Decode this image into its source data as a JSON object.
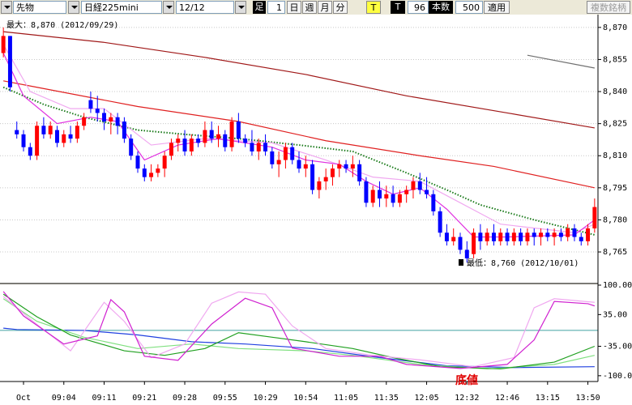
{
  "toolbar": {
    "market": "先物",
    "symbol": "日経225mini",
    "date": "12/12",
    "bar_label": "足",
    "bar_count": "1",
    "day": "日",
    "week": "週",
    "month": "月",
    "minute": "分",
    "tick_yellow": "T",
    "tick_label": "T",
    "tick_count": "96",
    "count_label": "本数",
    "count_value": "500",
    "apply": "適用",
    "multi": "複数銘柄"
  },
  "chart_data": [
    {
      "type": "candlestick",
      "max_label": "最大：8,870 (2012/09/29)",
      "min_label": "最低：8,760 (2012/10/01)",
      "categories": [
        null,
        null,
        null,
        "Oct",
        null,
        null,
        null,
        null,
        null,
        "09:04",
        null,
        null,
        null,
        null,
        null,
        "09:11",
        null,
        null,
        null,
        null,
        null,
        "09:21",
        null,
        null,
        null,
        null,
        null,
        "09:28",
        null,
        null,
        null,
        null,
        null,
        "09:55",
        null,
        null,
        null,
        null,
        null,
        "10:29",
        null,
        null,
        null,
        null,
        null,
        "10:54",
        null,
        null,
        null,
        null,
        null,
        "11:05",
        null,
        null,
        null,
        null,
        null,
        "11:35",
        null,
        null,
        null,
        null,
        null,
        "12:05",
        null,
        null,
        null,
        null,
        null,
        "12:32",
        null,
        null,
        null,
        null,
        null,
        "12:46",
        null,
        null,
        null,
        null,
        null,
        "13:15",
        null,
        null,
        null,
        null,
        null,
        "13:50",
        null
      ],
      "ohlc": [
        [
          8858,
          8870,
          8856,
          8866
        ],
        [
          8866,
          8866,
          8840,
          8842
        ],
        [
          8822,
          8826,
          8818,
          8820
        ],
        [
          8820,
          8822,
          8812,
          8814
        ],
        [
          8814,
          8816,
          8808,
          8810
        ],
        [
          8810,
          8826,
          8808,
          8824
        ],
        [
          8824,
          8828,
          8818,
          8820
        ],
        [
          8820,
          8826,
          8818,
          8824
        ],
        [
          8822,
          8824,
          8814,
          8816
        ],
        [
          8816,
          8822,
          8814,
          8820
        ],
        [
          8820,
          8824,
          8816,
          8818
        ],
        [
          8818,
          8826,
          8816,
          8824
        ],
        [
          8824,
          8830,
          8822,
          8828
        ],
        [
          8836,
          8840,
          8830,
          8832
        ],
        [
          8832,
          8838,
          8826,
          8830
        ],
        [
          8830,
          8832,
          8822,
          8826
        ],
        [
          8826,
          8830,
          8820,
          8828
        ],
        [
          8828,
          8830,
          8820,
          8824
        ],
        [
          8826,
          8828,
          8816,
          8818
        ],
        [
          8818,
          8820,
          8808,
          8810
        ],
        [
          8810,
          8812,
          8802,
          8804
        ],
        [
          8804,
          8806,
          8798,
          8800
        ],
        [
          8800,
          8806,
          8798,
          8802
        ],
        [
          8802,
          8806,
          8800,
          8804
        ],
        [
          8804,
          8812,
          8800,
          8810
        ],
        [
          8810,
          8818,
          8808,
          8816
        ],
        [
          8816,
          8820,
          8812,
          8818
        ],
        [
          8818,
          8822,
          8810,
          8812
        ],
        [
          8812,
          8820,
          8810,
          8818
        ],
        [
          8818,
          8820,
          8814,
          8816
        ],
        [
          8816,
          8826,
          8814,
          8822
        ],
        [
          8822,
          8826,
          8816,
          8818
        ],
        [
          8818,
          8824,
          8814,
          8820
        ],
        [
          8820,
          8822,
          8812,
          8814
        ],
        [
          8814,
          8828,
          8812,
          8826
        ],
        [
          8826,
          8830,
          8816,
          8818
        ],
        [
          8818,
          8820,
          8814,
          8816
        ],
        [
          8816,
          8822,
          8810,
          8812
        ],
        [
          8812,
          8818,
          8808,
          8816
        ],
        [
          8816,
          8820,
          8810,
          8812
        ],
        [
          8812,
          8814,
          8804,
          8806
        ],
        [
          8806,
          8812,
          8800,
          8808
        ],
        [
          8808,
          8816,
          8804,
          8814
        ],
        [
          8814,
          8816,
          8806,
          8808
        ],
        [
          8808,
          8812,
          8802,
          8804
        ],
        [
          8804,
          8810,
          8800,
          8806
        ],
        [
          8806,
          8808,
          8792,
          8794
        ],
        [
          8794,
          8800,
          8790,
          8798
        ],
        [
          8798,
          8804,
          8794,
          8800
        ],
        [
          8800,
          8806,
          8796,
          8804
        ],
        [
          8804,
          8808,
          8800,
          8806
        ],
        [
          8806,
          8808,
          8802,
          8804
        ],
        [
          8804,
          8810,
          8800,
          8806
        ],
        [
          8806,
          8808,
          8796,
          8798
        ],
        [
          8798,
          8800,
          8786,
          8788
        ],
        [
          8788,
          8796,
          8786,
          8794
        ],
        [
          8794,
          8798,
          8786,
          8790
        ],
        [
          8790,
          8796,
          8786,
          8792
        ],
        [
          8792,
          8796,
          8786,
          8788
        ],
        [
          8788,
          8794,
          8786,
          8792
        ],
        [
          8792,
          8796,
          8788,
          8794
        ],
        [
          8794,
          8800,
          8790,
          8798
        ],
        [
          8798,
          8802,
          8792,
          8794
        ],
        [
          8794,
          8800,
          8790,
          8792
        ],
        [
          8792,
          8794,
          8782,
          8784
        ],
        [
          8784,
          8786,
          8772,
          8774
        ],
        [
          8774,
          8778,
          8768,
          8770
        ],
        [
          8770,
          8776,
          8768,
          8772
        ],
        [
          8772,
          8774,
          8764,
          8766
        ],
        [
          8766,
          8770,
          8760,
          8762
        ],
        [
          8764,
          8776,
          8762,
          8774
        ],
        [
          8774,
          8778,
          8766,
          8770
        ],
        [
          8770,
          8776,
          8768,
          8774
        ],
        [
          8774,
          8778,
          8768,
          8770
        ],
        [
          8770,
          8776,
          8768,
          8774
        ],
        [
          8774,
          8776,
          8768,
          8770
        ],
        [
          8770,
          8776,
          8768,
          8774
        ],
        [
          8774,
          8776,
          8768,
          8770
        ],
        [
          8770,
          8776,
          8768,
          8774
        ],
        [
          8774,
          8776,
          8768,
          8772
        ],
        [
          8772,
          8776,
          8768,
          8774
        ],
        [
          8774,
          8776,
          8770,
          8772
        ],
        [
          8772,
          8776,
          8768,
          8774
        ],
        [
          8774,
          8776,
          8770,
          8772
        ],
        [
          8772,
          8778,
          8770,
          8776
        ],
        [
          8776,
          8778,
          8770,
          8772
        ],
        [
          8772,
          8774,
          8768,
          8770
        ],
        [
          8770,
          8778,
          8768,
          8776
        ],
        [
          8776,
          8790,
          8774,
          8786
        ]
      ],
      "up_color": "#ff0000",
      "down_color": "#0000ff",
      "ylim": [
        8751,
        8876
      ],
      "yticks": [
        {
          "value": 8765,
          "label": "8,765"
        },
        {
          "value": 8780,
          "label": "8,780"
        },
        {
          "value": 8795,
          "label": "8,795"
        },
        {
          "value": 8810,
          "label": "8,810"
        },
        {
          "value": 8825,
          "label": "8,825"
        },
        {
          "value": 8840,
          "label": "8,840"
        },
        {
          "value": 8855,
          "label": "8,855"
        },
        {
          "value": 8870,
          "label": "8,870"
        }
      ],
      "grid": true,
      "lines": [
        {
          "color": "#a01818",
          "style": "solid",
          "x": [
            0,
            15,
            30,
            45,
            60,
            75,
            88
          ],
          "values": [
            8868,
            8863,
            8856,
            8848,
            8838,
            8830,
            8823
          ]
        },
        {
          "color": "#e02020",
          "style": "solid",
          "x": [
            0,
            5,
            20,
            35,
            48,
            62,
            73,
            88
          ],
          "values": [
            8845,
            8842,
            8833,
            8826,
            8817,
            8810,
            8805,
            8795
          ]
        },
        {
          "color": "#1a7a1a",
          "style": "dotted",
          "x": [
            0,
            6,
            12,
            20,
            27,
            35,
            44,
            52,
            60,
            66,
            71,
            79,
            88
          ],
          "values": [
            8842,
            8834,
            8828,
            8822,
            8820,
            8818,
            8815,
            8812,
            8802,
            8794,
            8787,
            8780,
            8773
          ]
        },
        {
          "color": "#707070",
          "style": "solid",
          "x": [
            78,
            88
          ],
          "values": [
            8857,
            8851
          ]
        },
        {
          "color": "#f0a8f0",
          "style": "solid",
          "x": [
            0,
            4,
            10,
            15,
            22,
            30,
            40,
            48,
            55,
            62,
            68,
            74,
            85,
            88
          ],
          "values": [
            8862,
            8840,
            8832,
            8832,
            8815,
            8818,
            8816,
            8808,
            8800,
            8798,
            8788,
            8778,
            8774,
            8778
          ]
        },
        {
          "color": "#e030e0",
          "style": "solid",
          "x": [
            0,
            3,
            8,
            13,
            17,
            21,
            26,
            32,
            40,
            45,
            50,
            54,
            58,
            62,
            66,
            70,
            75,
            85,
            88
          ],
          "values": [
            8858,
            8838,
            8825,
            8828,
            8826,
            8808,
            8815,
            8818,
            8814,
            8808,
            8806,
            8798,
            8792,
            8795,
            8785,
            8772,
            8772,
            8773,
            8780
          ]
        }
      ]
    },
    {
      "type": "line",
      "annotation": "底値",
      "ylim": [
        -111,
        100
      ],
      "yticks": [
        {
          "value": -100,
          "label": "-100.00"
        },
        {
          "value": -35,
          "label": "-35.00"
        },
        {
          "value": 35,
          "label": "35.00"
        },
        {
          "value": 100,
          "label": "100.00"
        }
      ],
      "hlines": [
        0
      ],
      "hline_color": "#40a0a0",
      "lines": [
        {
          "color": "#2040e0",
          "style": "solid",
          "x": [
            0,
            2,
            12,
            20,
            28,
            36,
            46,
            56,
            66,
            76,
            88
          ],
          "values": [
            5,
            2,
            0,
            -10,
            -25,
            -30,
            -40,
            -60,
            -78,
            -82,
            -80
          ]
        },
        {
          "color": "#80e080",
          "style": "solid",
          "x": [
            0,
            5,
            12,
            20,
            28,
            35,
            45,
            52,
            62,
            72,
            82,
            88
          ],
          "values": [
            70,
            20,
            -15,
            -40,
            -30,
            -40,
            -45,
            -55,
            -75,
            -85,
            -75,
            -55
          ]
        },
        {
          "color": "#20a020",
          "style": "solid",
          "x": [
            0,
            5,
            10,
            18,
            24,
            30,
            35,
            40,
            45,
            52,
            58,
            65,
            74,
            82,
            88
          ],
          "values": [
            80,
            30,
            -10,
            -45,
            -55,
            -40,
            -5,
            -15,
            -25,
            -40,
            -60,
            -80,
            -85,
            -70,
            -35
          ]
        },
        {
          "color": "#f0a8f0",
          "style": "solid",
          "x": [
            0,
            4,
            10,
            15,
            18,
            22,
            27,
            31,
            35,
            39,
            43,
            48,
            55,
            62,
            70,
            76,
            79,
            82,
            88
          ],
          "values": [
            75,
            25,
            -45,
            62,
            20,
            -60,
            -30,
            60,
            85,
            80,
            10,
            -40,
            -55,
            -65,
            -80,
            -60,
            50,
            70,
            62
          ]
        },
        {
          "color": "#d020d0",
          "style": "solid",
          "x": [
            0,
            3,
            9,
            14,
            16,
            18,
            21,
            26,
            31,
            36,
            40,
            43,
            50,
            56,
            60,
            68,
            75,
            79,
            82,
            87,
            88
          ],
          "values": [
            86,
            32,
            -30,
            -12,
            68,
            41,
            -57,
            -66,
            14,
            71,
            50,
            -39,
            -57,
            -57,
            -75,
            -84,
            -75,
            -21,
            64,
            59,
            54
          ]
        }
      ]
    }
  ]
}
